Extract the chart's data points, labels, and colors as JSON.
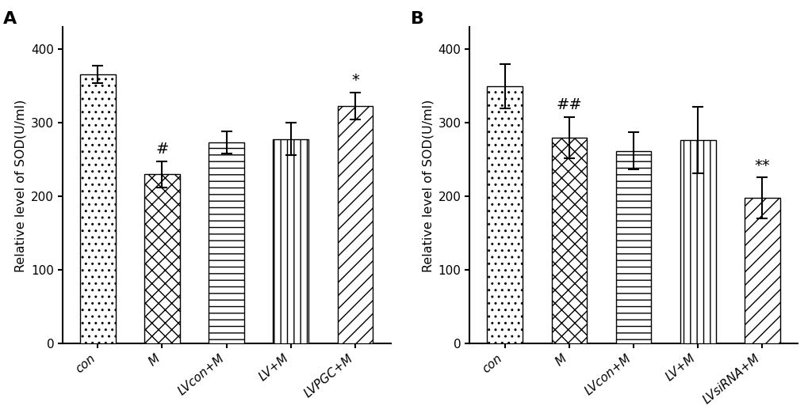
{
  "panel_A": {
    "categories": [
      "con",
      "M",
      "LVcon+M",
      "LV+M",
      "LVPGC+M"
    ],
    "values": [
      366,
      230,
      273,
      278,
      323
    ],
    "errors": [
      12,
      18,
      15,
      22,
      18
    ],
    "annotations": [
      "",
      "#",
      "",
      "",
      "*"
    ],
    "ylabel": "Relative level of SOD(U/ml)",
    "panel_label": "A",
    "ylim": [
      0,
      430
    ],
    "yticks": [
      0,
      100,
      200,
      300,
      400
    ]
  },
  "panel_B": {
    "categories": [
      "con",
      "M",
      "LVcon+M",
      "LV+M",
      "LVsiRNA+M"
    ],
    "values": [
      350,
      280,
      262,
      277,
      198
    ],
    "errors": [
      30,
      28,
      25,
      45,
      28
    ],
    "annotations": [
      "",
      "##",
      "",
      "",
      "**"
    ],
    "ylabel": "Relative level of SOD(U/ml)",
    "panel_label": "B",
    "ylim": [
      0,
      430
    ],
    "yticks": [
      0,
      100,
      200,
      300,
      400
    ]
  },
  "hatch_A": [
    "....",
    "xxxx",
    "----",
    "||||",
    "////"
  ],
  "hatch_B": [
    "....",
    "xxxx",
    "----",
    "||||",
    "////"
  ],
  "bar_width": 0.55,
  "edge_color": "#000000",
  "background_color": "#ffffff",
  "text_color": "#000000",
  "tick_fontsize": 11,
  "label_fontsize": 11.5,
  "annotation_fontsize": 14,
  "panel_label_fontsize": 16
}
